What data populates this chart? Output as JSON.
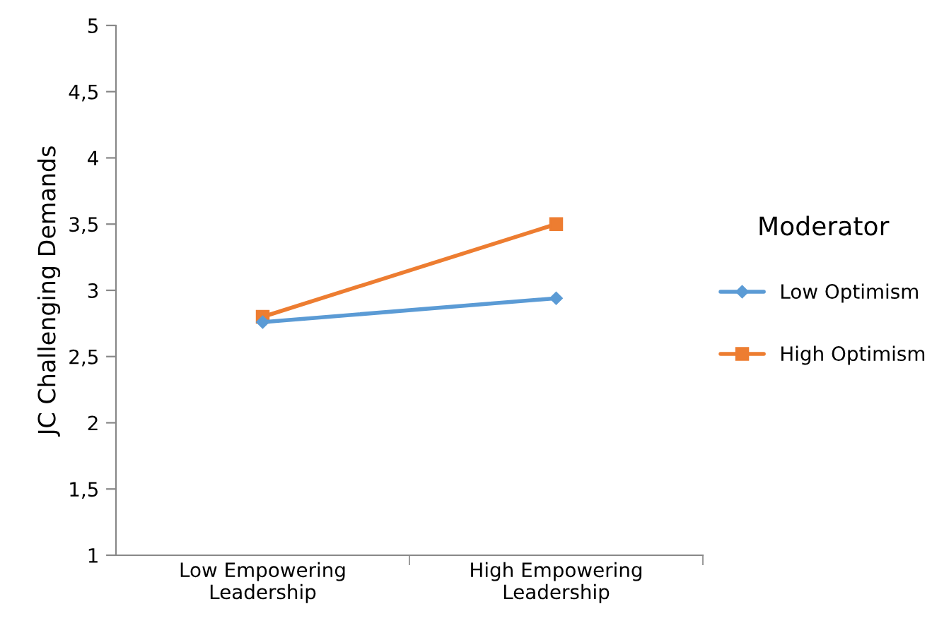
{
  "chart_data": {
    "type": "line",
    "ylabel": "JC Challenging Demands",
    "legend_title": "Moderator",
    "legend": "right",
    "grid": false,
    "categories": [
      "Low Empowering\nLeadership",
      "High Empowering\nLeadership"
    ],
    "ylim": [
      1,
      5
    ],
    "yticks": [
      1,
      {
        "value": 1.5,
        "label": "1,5"
      },
      2,
      {
        "value": 2.5,
        "label": "2,5"
      },
      3,
      {
        "value": 3.5,
        "label": "3,5"
      },
      4,
      {
        "value": 4.5,
        "label": "4,5"
      },
      5
    ],
    "series": [
      {
        "name": "Low Optimism",
        "color": "#5b9bd5",
        "marker": "diamond",
        "values": [
          2.76,
          2.94
        ]
      },
      {
        "name": "High Optimism",
        "color": "#ed7d31",
        "marker": "square",
        "values": [
          2.8,
          3.5
        ]
      }
    ]
  }
}
